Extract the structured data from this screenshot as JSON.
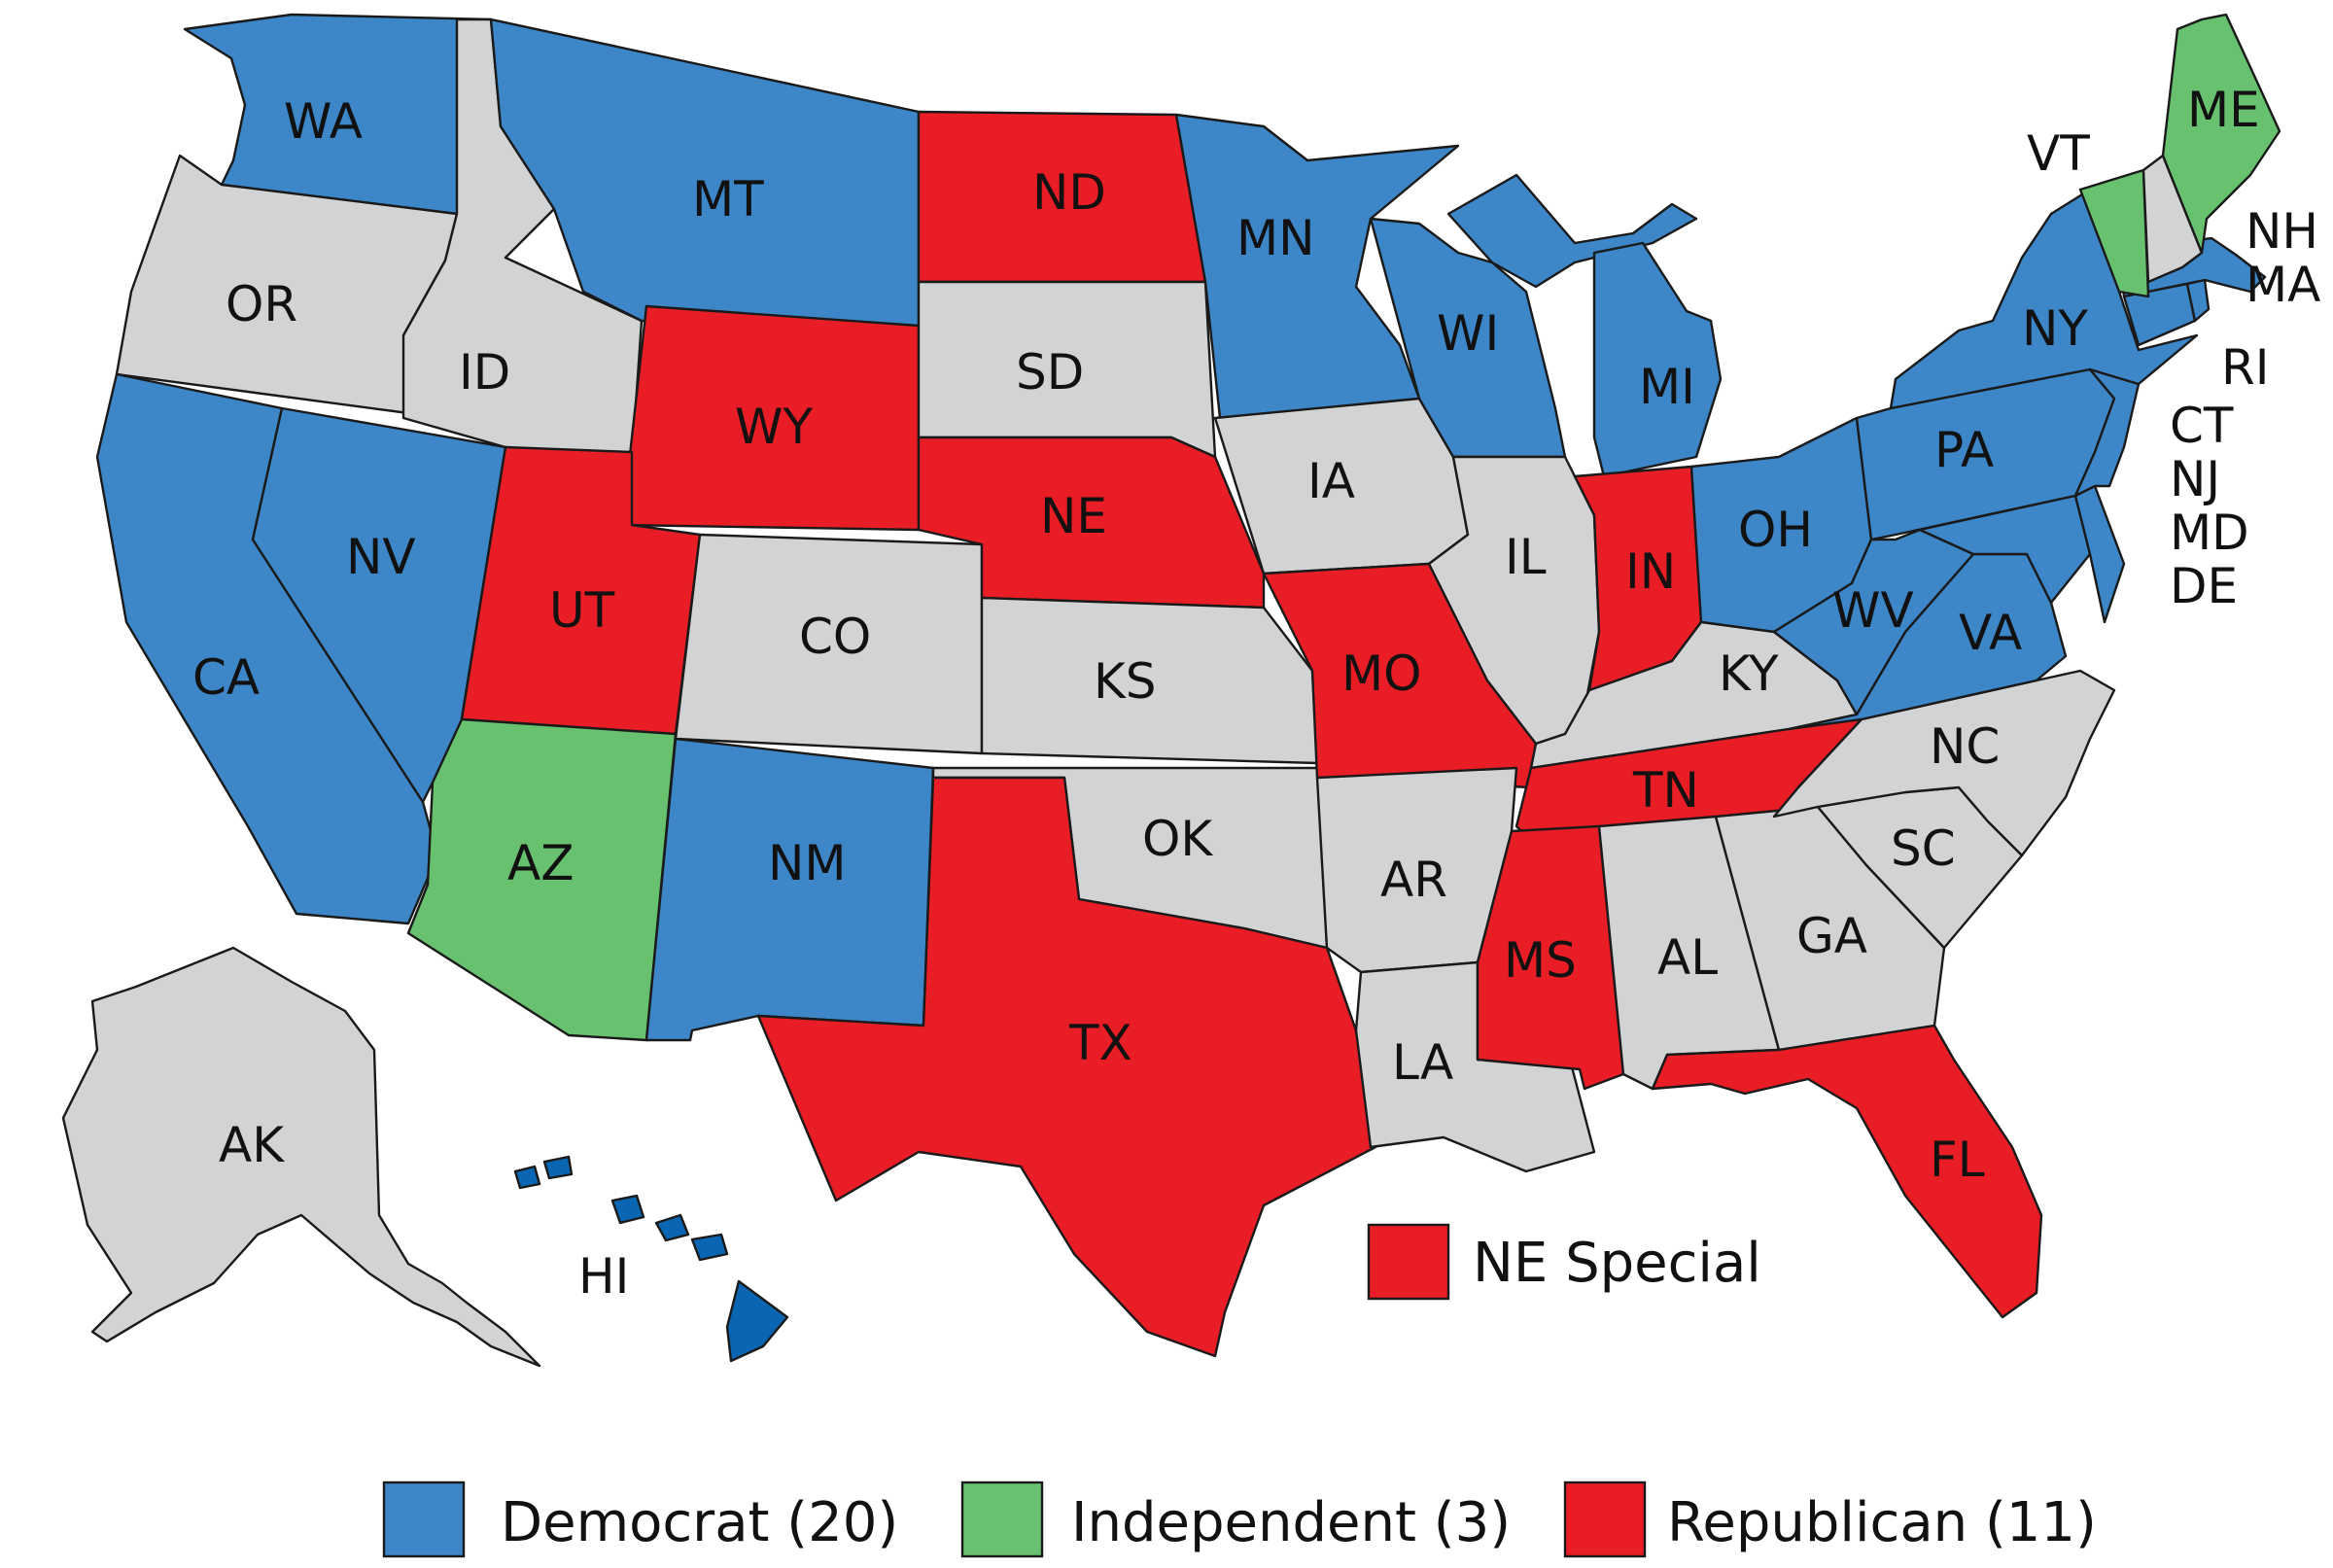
{
  "colors": {
    "democrat": "#3d87c9",
    "independent": "#68c16f",
    "republican": "#e91d25",
    "none": "#d1d3d4",
    "hawaii": "#0a66b2"
  },
  "states": {
    "WA": {
      "label": "WA",
      "party": "democrat"
    },
    "OR": {
      "label": "OR",
      "party": "none"
    },
    "CA": {
      "label": "CA",
      "party": "democrat"
    },
    "NV": {
      "label": "NV",
      "party": "democrat"
    },
    "ID": {
      "label": "ID",
      "party": "none"
    },
    "MT": {
      "label": "MT",
      "party": "democrat"
    },
    "WY": {
      "label": "WY",
      "party": "republican"
    },
    "UT": {
      "label": "UT",
      "party": "republican"
    },
    "AZ": {
      "label": "AZ",
      "party": "independent"
    },
    "CO": {
      "label": "CO",
      "party": "none"
    },
    "NM": {
      "label": "NM",
      "party": "democrat"
    },
    "ND": {
      "label": "ND",
      "party": "republican"
    },
    "SD": {
      "label": "SD",
      "party": "none"
    },
    "NE": {
      "label": "NE",
      "party": "republican"
    },
    "KS": {
      "label": "KS",
      "party": "none"
    },
    "OK": {
      "label": "OK",
      "party": "none"
    },
    "TX": {
      "label": "TX",
      "party": "republican"
    },
    "MN": {
      "label": "MN",
      "party": "democrat"
    },
    "IA": {
      "label": "IA",
      "party": "none"
    },
    "MO": {
      "label": "MO",
      "party": "republican"
    },
    "AR": {
      "label": "AR",
      "party": "none"
    },
    "LA": {
      "label": "LA",
      "party": "none"
    },
    "WI": {
      "label": "WI",
      "party": "democrat"
    },
    "IL": {
      "label": "IL",
      "party": "none"
    },
    "MI": {
      "label": "MI",
      "party": "democrat"
    },
    "IN": {
      "label": "IN",
      "party": "republican"
    },
    "OH": {
      "label": "OH",
      "party": "democrat"
    },
    "KY": {
      "label": "KY",
      "party": "none"
    },
    "TN": {
      "label": "TN",
      "party": "republican"
    },
    "MS": {
      "label": "MS",
      "party": "republican"
    },
    "AL": {
      "label": "AL",
      "party": "none"
    },
    "GA": {
      "label": "GA",
      "party": "none"
    },
    "FL": {
      "label": "FL",
      "party": "republican"
    },
    "SC": {
      "label": "SC",
      "party": "none"
    },
    "NC": {
      "label": "NC",
      "party": "none"
    },
    "VA": {
      "label": "VA",
      "party": "democrat"
    },
    "WV": {
      "label": "WV",
      "party": "democrat"
    },
    "PA": {
      "label": "PA",
      "party": "democrat"
    },
    "NY": {
      "label": "NY",
      "party": "democrat"
    },
    "VT": {
      "label": "VT",
      "party": "independent"
    },
    "NH": {
      "label": "NH",
      "party": "none"
    },
    "ME": {
      "label": "ME",
      "party": "independent"
    },
    "MA": {
      "label": "MA",
      "party": "democrat"
    },
    "RI": {
      "label": "RI",
      "party": "democrat"
    },
    "CT": {
      "label": "CT",
      "party": "democrat"
    },
    "NJ": {
      "label": "NJ",
      "party": "democrat"
    },
    "MD": {
      "label": "MD",
      "party": "democrat"
    },
    "DE": {
      "label": "DE",
      "party": "democrat"
    },
    "AK": {
      "label": "AK",
      "party": "none"
    },
    "HI": {
      "label": "HI",
      "party": "democrat"
    }
  },
  "special": {
    "label": "NE Special",
    "party": "republican"
  },
  "legend": [
    {
      "label": "Democrat (20)",
      "party": "democrat"
    },
    {
      "label": "Independent (3)",
      "party": "independent"
    },
    {
      "label": "Republican (11)",
      "party": "republican"
    }
  ]
}
